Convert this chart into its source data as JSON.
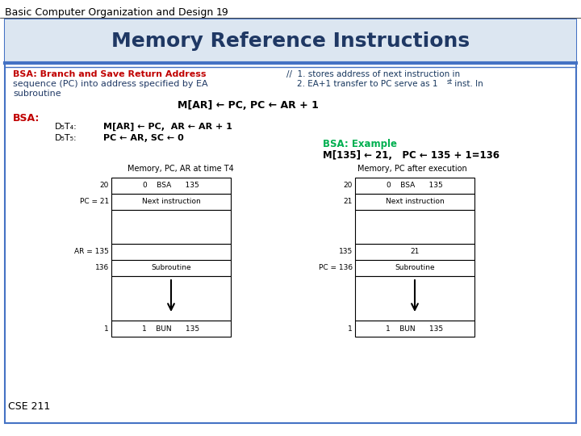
{
  "title_header": "Basic Computer Organization and Design",
  "title_number": "19",
  "title_main": "Memory Reference Instructions",
  "bg_color": "#ffffff",
  "bsa_title": "BSA: Branch and Save Return Address",
  "bsa_desc1": "sequence (PC) into address specified by EA",
  "bsa_desc2": "subroutine",
  "comment1": "//  1. stores address of next instruction in",
  "comment2_a": "    2. EA+1 transfer to PC serve as 1",
  "comment2_sup": "st",
  "comment2_b": " inst. In",
  "formula": "M[AR] ← PC, PC ← AR + 1",
  "bsa_label": "BSA:",
  "d5t4_label": "D₅T₄:",
  "d5t4_op": "M[AR] ← PC,  AR ← AR + 1",
  "d5t5_label": "D₅T₅:",
  "d5t5_op": "PC ← AR, SC ← 0",
  "example_title": "BSA: Example",
  "example_formula": "M[135] ← 21,   PC ← 135 + 1=136",
  "mem1_title": "Memory, PC, AR at time T4",
  "mem2_title": "Memory, PC after execution",
  "footer": "CSE 211",
  "slide_border_color": "#4472c4",
  "title_bg_color": "#dce6f1",
  "title_color": "#1f3864",
  "bsa_color": "#c00000",
  "comment_color": "#17375e",
  "desc_color": "#1f3864",
  "example_color": "#00b050"
}
